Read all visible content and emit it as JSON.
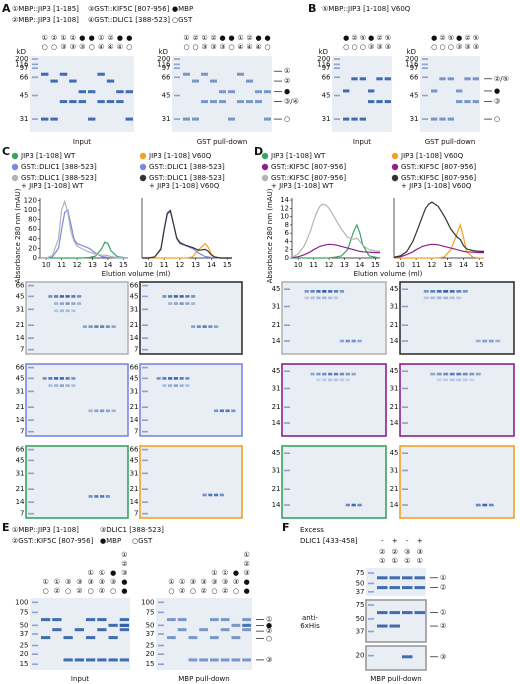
{
  "panels": {
    "A": {
      "label": "A",
      "legend": [
        "①MBP::JIP3 [1-185]",
        "③GST::KIF5C [807-956]",
        "●MBP",
        "②MBP::JIP3 [1-108]",
        "④GST::DLIC1 [388-523]",
        "○GST"
      ],
      "gels": [
        {
          "caption": "Input",
          "kd": "kD",
          "markers": [
            "200",
            "116",
            "97",
            "66",
            "45",
            "31"
          ],
          "lanes": [
            [
              "①",
              "○"
            ],
            [
              "②",
              "○"
            ],
            [
              "①",
              "③"
            ],
            [
              "②",
              "③"
            ],
            [
              "●",
              "③"
            ],
            [
              "●",
              "○"
            ],
            [
              "①",
              "④"
            ],
            [
              "②",
              "④"
            ],
            [
              "●",
              "④"
            ],
            [
              "●",
              "○"
            ]
          ]
        },
        {
          "caption": "GST pull-down",
          "kd": "kD",
          "markers": [
            "200",
            "116",
            "97",
            "66",
            "45",
            "31"
          ],
          "lanes": [
            [
              "①",
              "○"
            ],
            [
              "②",
              "○"
            ],
            [
              "①",
              "③"
            ],
            [
              "②",
              "③"
            ],
            [
              "●",
              "③"
            ],
            [
              "●",
              "○"
            ],
            [
              "①",
              "④"
            ],
            [
              "②",
              "④"
            ],
            [
              "●",
              "④"
            ],
            [
              "●",
              "○"
            ]
          ]
        }
      ],
      "right_labels": [
        "①",
        "②",
        "●",
        "③/④",
        "○"
      ]
    },
    "B": {
      "label": "B",
      "legend": [
        "⑤MBP::JIP3 [1-108] V60Q"
      ],
      "gels": [
        {
          "caption": "Input",
          "kd": "kD",
          "markers": [
            "200",
            "116",
            "97",
            "66",
            "45",
            "31"
          ],
          "lanes": [
            [
              "●",
              "○"
            ],
            [
              "②",
              "○"
            ],
            [
              "⑤",
              "○"
            ],
            [
              "●",
              "③"
            ],
            [
              "②",
              "③"
            ],
            [
              "⑤",
              "③"
            ]
          ]
        },
        {
          "caption": "GST pull-down",
          "kd": "kD",
          "markers": [
            "200",
            "116",
            "97",
            "66",
            "45",
            "31"
          ],
          "lanes": [
            [
              "●",
              "○"
            ],
            [
              "②",
              "○"
            ],
            [
              "⑤",
              "○"
            ],
            [
              "●",
              "③"
            ],
            [
              "②",
              "③"
            ],
            [
              "⑤",
              "③"
            ]
          ]
        }
      ],
      "right_labels": [
        "②/⑤",
        "●",
        "③",
        "○"
      ]
    },
    "C": {
      "label": "C",
      "gel_markers": [
        "66",
        "45",
        "31",
        "21",
        "14",
        "7"
      ]
    },
    "D": {
      "label": "D",
      "gel_markers": [
        "45",
        "31",
        "21",
        "14"
      ]
    },
    "E": {
      "label": "E",
      "legend": [
        "①MBP::JIP3 [1-108]",
        "③DLIC1 [388-523]",
        "②GST::KIF5C [807-956]",
        "●MBP",
        "○GST"
      ],
      "gels": [
        {
          "caption": "Input",
          "markers": [
            "100",
            "75",
            "50",
            "37",
            "25",
            "20",
            "15"
          ],
          "lanes": [
            [
              "①",
              "○"
            ],
            [
              "①",
              "②"
            ],
            [
              "③",
              "○"
            ],
            [
              "③",
              "②"
            ],
            [
              "①",
              "③",
              "○"
            ],
            [
              "①",
              "③",
              "②"
            ],
            [
              "●",
              "③",
              "○"
            ],
            [
              "①",
              "②",
              "③",
              "●",
              "●"
            ]
          ]
        },
        {
          "caption": "MBP pull-down",
          "markers": [
            "100",
            "75",
            "50",
            "37",
            "25",
            "20",
            "15"
          ],
          "lanes": [
            [
              "①",
              "○"
            ],
            [
              "①",
              "②"
            ],
            [
              "③",
              "○"
            ],
            [
              "③",
              "②"
            ],
            [
              "①",
              "③",
              "○"
            ],
            [
              "①",
              "③",
              "②"
            ],
            [
              "●",
              "③",
              "○"
            ],
            [
              "①",
              "②",
              "③",
              "●",
              "●"
            ]
          ]
        }
      ],
      "right_labels": [
        "①",
        "●",
        "②",
        "○",
        "③"
      ]
    },
    "F": {
      "label": "F",
      "excess": "Excess",
      "treatment": "DLIC1 [433-458]",
      "signs": [
        "-",
        "+",
        "-",
        "+"
      ],
      "lanes": [
        [
          "②",
          "①"
        ],
        [
          "②",
          "①"
        ],
        [
          "③",
          "①"
        ],
        [
          "③",
          "①"
        ]
      ],
      "gels": [
        {
          "markers": [
            "75",
            "50",
            "37"
          ],
          "right_labels": [
            "①",
            "②"
          ]
        },
        {
          "markers": [
            "75",
            "50",
            "37"
          ],
          "right_labels": [
            "①",
            "②"
          ]
        },
        {
          "markers": [
            "20"
          ],
          "right_labels": [
            "③"
          ]
        }
      ],
      "blot_label": "anti-6xHis",
      "caption": "MBP pull-down"
    }
  },
  "chart_data": [
    {
      "type": "line",
      "y_label": "Absorbance 280 nm (mAU)",
      "x_label": "Elution volume (ml)",
      "xlim": [
        9.6,
        15.3
      ],
      "xticks": [
        10,
        11,
        12,
        13,
        14,
        15
      ],
      "ylim": [
        0,
        125
      ],
      "yticks": [
        0,
        20,
        40,
        60,
        80,
        100,
        120
      ],
      "x": [
        9.6,
        10.0,
        10.4,
        10.8,
        11.0,
        11.2,
        11.4,
        11.6,
        11.8,
        12.0,
        12.4,
        12.8,
        13.2,
        13.6,
        13.8,
        14.0,
        14.2,
        14.6,
        15.0,
        15.3
      ],
      "series": [
        {
          "name": "JIP3 [1-108] WT",
          "color": "#3aa360",
          "values": [
            0,
            0,
            0,
            0,
            0,
            0,
            0,
            0,
            0,
            0,
            0,
            1,
            4,
            20,
            33,
            30,
            15,
            3,
            1,
            0
          ]
        },
        {
          "name": "GST::DLIC1 [388-523]",
          "color": "#7b86e8",
          "values": [
            0,
            0,
            2,
            20,
            60,
            95,
            100,
            70,
            40,
            30,
            25,
            20,
            10,
            3,
            2,
            1,
            1,
            0,
            0,
            0
          ]
        },
        {
          "name": "GST::DLIC1 [388-523] + JIP3 [1-108] WT",
          "color": "#b4b4b4",
          "values": [
            0,
            0,
            5,
            40,
            100,
            118,
            95,
            55,
            35,
            25,
            18,
            12,
            8,
            6,
            6,
            5,
            3,
            1,
            0,
            0
          ]
        }
      ]
    },
    {
      "type": "line",
      "xlim": [
        9.6,
        15.3
      ],
      "xticks": [
        10,
        11,
        12,
        13,
        14,
        15
      ],
      "ylim": [
        0,
        125
      ],
      "x": [
        9.6,
        10.0,
        10.4,
        10.8,
        11.0,
        11.2,
        11.4,
        11.6,
        11.8,
        12.0,
        12.4,
        12.8,
        13.2,
        13.6,
        13.8,
        14.0,
        14.2,
        14.6,
        15.0,
        15.3
      ],
      "series": [
        {
          "name": "JIP3 [1-108] V60Q",
          "color": "#f5a020",
          "values": [
            0,
            0,
            0,
            0,
            0,
            0,
            0,
            0,
            0,
            0,
            0,
            2,
            18,
            30,
            22,
            8,
            2,
            0,
            0,
            0
          ]
        },
        {
          "name": "GST::DLIC1 [388-523]",
          "color": "#7b86e8",
          "values": [
            0,
            0,
            2,
            20,
            60,
            95,
            100,
            70,
            40,
            30,
            25,
            20,
            10,
            3,
            2,
            1,
            1,
            0,
            0,
            0
          ]
        },
        {
          "name": "GST::DLIC1 [388-523] + JIP3 [1-108] V60Q",
          "color": "#333333",
          "values": [
            0,
            0,
            2,
            18,
            58,
            92,
            98,
            70,
            42,
            32,
            26,
            22,
            16,
            18,
            14,
            6,
            2,
            0,
            0,
            0
          ]
        }
      ]
    },
    {
      "type": "line",
      "y_label": "Absorbance 280 nm (mAU)",
      "x_label": "Elution volume (ml)",
      "xlim": [
        9.6,
        15.3
      ],
      "xticks": [
        10,
        11,
        12,
        13,
        14,
        15
      ],
      "ylim": [
        0,
        14.5
      ],
      "yticks": [
        0,
        2,
        4,
        6,
        8,
        10,
        12,
        14
      ],
      "x": [
        9.6,
        10.0,
        10.4,
        10.8,
        11.0,
        11.2,
        11.4,
        11.6,
        11.8,
        12.0,
        12.4,
        12.8,
        13.2,
        13.6,
        13.8,
        14.0,
        14.2,
        14.6,
        15.0,
        15.3
      ],
      "series": [
        {
          "name": "JIP3 [1-108] WT",
          "color": "#3aa360",
          "values": [
            0,
            0,
            0,
            0,
            0,
            0,
            0,
            0,
            0,
            0,
            0.2,
            0.5,
            2,
            6.5,
            8,
            6,
            3,
            0.5,
            0.2,
            0
          ]
        },
        {
          "name": "GST::KIF5C [807-956]",
          "color": "#8e1f8e",
          "values": [
            0.1,
            0.3,
            0.8,
            1.5,
            2,
            2.4,
            2.8,
            3,
            3.2,
            3.3,
            3.2,
            2.8,
            2.4,
            2,
            1.8,
            1.6,
            1.5,
            1.4,
            1.3,
            1.3
          ]
        },
        {
          "name": "GST::KIF5C [807-956] + JIP3 [1-108] WT",
          "color": "#b4b4b4",
          "values": [
            0.2,
            1,
            3,
            6.5,
            9,
            11,
            12.5,
            13,
            12.8,
            12,
            9.5,
            7,
            5,
            4.5,
            4.8,
            4,
            3,
            2,
            1.7,
            1.6
          ]
        }
      ]
    },
    {
      "type": "line",
      "xlim": [
        9.6,
        15.3
      ],
      "xticks": [
        10,
        11,
        12,
        13,
        14,
        15
      ],
      "ylim": [
        0,
        14.5
      ],
      "x": [
        9.6,
        10.0,
        10.4,
        10.8,
        11.0,
        11.2,
        11.4,
        11.6,
        11.8,
        12.0,
        12.4,
        12.8,
        13.2,
        13.6,
        13.8,
        14.0,
        14.2,
        14.6,
        15.0,
        15.3
      ],
      "series": [
        {
          "name": "JIP3 [1-108] V60Q",
          "color": "#f5a020",
          "values": [
            0,
            0,
            0,
            0,
            0,
            0,
            0,
            0,
            0,
            0,
            0,
            0.3,
            2,
            6,
            8,
            5,
            1.5,
            0.2,
            0,
            0
          ]
        },
        {
          "name": "GST::KIF5C [807-956]",
          "color": "#8e1f8e",
          "values": [
            0.1,
            0.3,
            0.8,
            1.5,
            2,
            2.4,
            2.8,
            3,
            3.2,
            3.3,
            3.2,
            2.8,
            2.4,
            2,
            1.8,
            1.6,
            1.5,
            1.4,
            1.3,
            1.3
          ]
        },
        {
          "name": "GST::KIF5C [807-956] + JIP3 [1-108] V60Q",
          "color": "#333333",
          "values": [
            0.2,
            0.5,
            1.5,
            4,
            6,
            8,
            10,
            12,
            13,
            13.5,
            12.5,
            10,
            7,
            5,
            4.5,
            3,
            2.2,
            1.8,
            1.6,
            1.6
          ]
        }
      ]
    }
  ]
}
